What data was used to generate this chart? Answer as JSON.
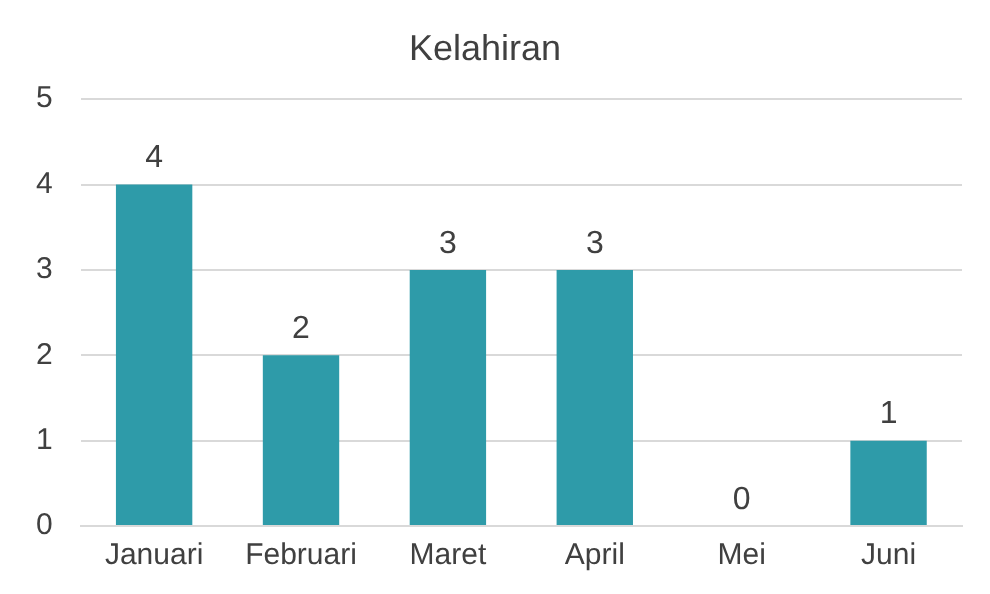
{
  "chart_data": {
    "type": "bar",
    "title": "Kelahiran",
    "categories": [
      "Januari",
      "Februari",
      "Maret",
      "April",
      "Mei",
      "Juni"
    ],
    "values": [
      4,
      2,
      3,
      3,
      0,
      1
    ],
    "color": "#2e9ba9",
    "ylim": [
      0,
      5
    ],
    "yticks": [
      0,
      1,
      2,
      3,
      4,
      5
    ],
    "grid": "y",
    "data_labels": true,
    "legend": false
  }
}
